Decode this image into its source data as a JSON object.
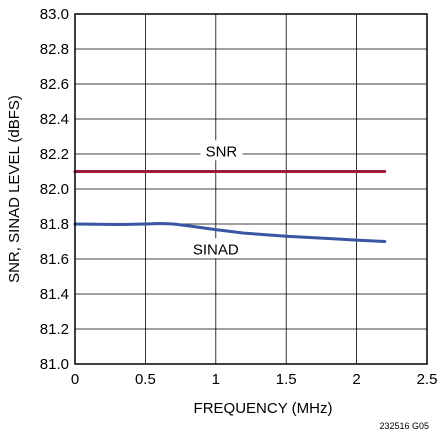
{
  "chart_data": {
    "type": "line",
    "xlabel": "FREQUENCY (MHz)",
    "ylabel": "SNR, SINAD LEVEL (dBFS)",
    "xlim": [
      0,
      2.5
    ],
    "ylim": [
      81.0,
      83.0
    ],
    "x_ticks": [
      "0",
      "0.5",
      "1",
      "1.5",
      "2",
      "2.5"
    ],
    "y_ticks": [
      "81.0",
      "81.2",
      "81.4",
      "81.6",
      "81.8",
      "82.0",
      "82.2",
      "82.4",
      "82.6",
      "82.8",
      "83.0"
    ],
    "grid": true,
    "figure_id": "232516 G05",
    "series": [
      {
        "name": "SNR",
        "color": "#9b1c3c",
        "x": [
          0,
          0.5,
          1,
          1.5,
          2,
          2.2
        ],
        "y": [
          82.1,
          82.1,
          82.1,
          82.1,
          82.1,
          82.1
        ]
      },
      {
        "name": "SINAD",
        "color": "#3a55a4",
        "x": [
          0,
          0.3,
          0.5,
          0.6,
          0.7,
          0.8,
          1.0,
          1.2,
          1.5,
          1.8,
          2.0,
          2.2
        ],
        "y": [
          81.8,
          81.797,
          81.8,
          81.803,
          81.8,
          81.79,
          81.768,
          81.748,
          81.73,
          81.717,
          81.708,
          81.7
        ]
      }
    ]
  }
}
